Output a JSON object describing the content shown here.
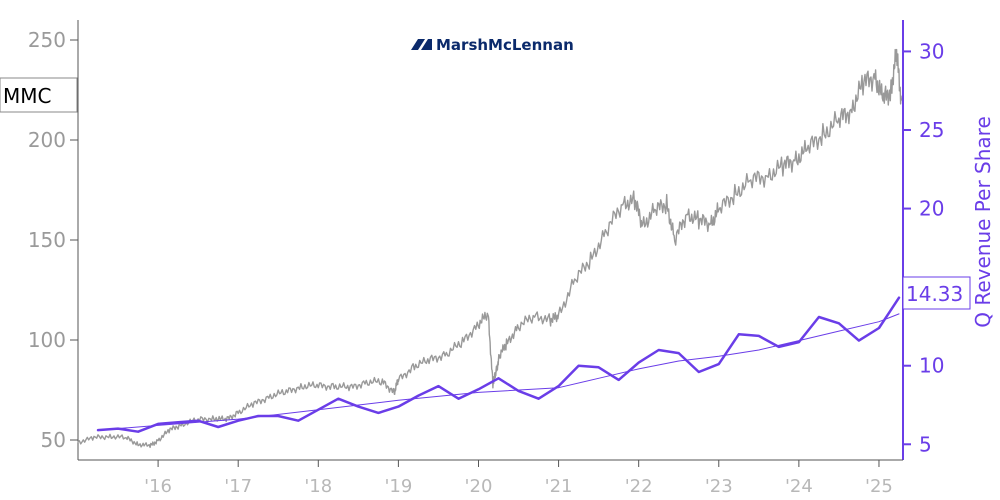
{
  "logo": {
    "text": "MarshMcLennan"
  },
  "chart_data": {
    "type": "line",
    "title": "",
    "ticker_label": "MMC",
    "x_ticks": [
      "'16",
      "'17",
      "'18",
      "'19",
      "'20",
      "'21",
      "'22",
      "'23",
      "'24",
      "'25"
    ],
    "x_range": [
      2015.0,
      2025.3
    ],
    "left_axis": {
      "label": "",
      "ticks": [
        50,
        100,
        150,
        200,
        250
      ],
      "range": [
        40,
        260
      ]
    },
    "right_axis": {
      "label": "Q Revenue Per Share",
      "ticks": [
        5,
        10,
        15,
        20,
        25,
        30
      ],
      "range": [
        4,
        32
      ]
    },
    "current_value_label": "14.33",
    "grid": false,
    "colors": {
      "price": "#999999",
      "revenue": "#6a3de8",
      "trend": "#6a3de8",
      "axis_left": "#555555",
      "axis_right": "#6a3de8"
    },
    "series": [
      {
        "name": "",
        "axis": "left",
        "style": "price",
        "x": [
          2015.0,
          2015.2,
          2015.4,
          2015.6,
          2015.75,
          2015.9,
          2016.0,
          2016.15,
          2016.3,
          2016.5,
          2016.7,
          2016.85,
          2017.0,
          2017.2,
          2017.4,
          2017.6,
          2017.8,
          2018.0,
          2018.2,
          2018.4,
          2018.6,
          2018.8,
          2018.95,
          2019.0,
          2019.2,
          2019.4,
          2019.6,
          2019.8,
          2020.0,
          2020.12,
          2020.18,
          2020.22,
          2020.26,
          2020.35,
          2020.5,
          2020.7,
          2020.9,
          2021.0,
          2021.2,
          2021.4,
          2021.6,
          2021.8,
          2021.95,
          2022.05,
          2022.2,
          2022.35,
          2022.45,
          2022.6,
          2022.75,
          2022.9,
          2023.0,
          2023.2,
          2023.4,
          2023.6,
          2023.8,
          2023.95,
          2024.1,
          2024.3,
          2024.5,
          2024.65,
          2024.8,
          2024.95,
          2025.05,
          2025.15,
          2025.22,
          2025.28
        ],
        "values": [
          49,
          51,
          52,
          51,
          48,
          47,
          50,
          55,
          58,
          60,
          61,
          60,
          64,
          68,
          72,
          74,
          77,
          77,
          77,
          76,
          79,
          79,
          74,
          80,
          87,
          90,
          93,
          99,
          108,
          113,
          78,
          84,
          92,
          98,
          107,
          112,
          110,
          112,
          130,
          140,
          155,
          168,
          170,
          157,
          165,
          168,
          150,
          163,
          160,
          158,
          165,
          173,
          180,
          182,
          187,
          190,
          195,
          203,
          210,
          215,
          228,
          232,
          220,
          225,
          243,
          220
        ]
      },
      {
        "name": "",
        "axis": "right",
        "style": "revenue",
        "x": [
          2015.25,
          2015.5,
          2015.75,
          2016.0,
          2016.25,
          2016.5,
          2016.75,
          2017.0,
          2017.25,
          2017.5,
          2017.75,
          2018.0,
          2018.25,
          2018.5,
          2018.75,
          2019.0,
          2019.25,
          2019.5,
          2019.75,
          2020.0,
          2020.25,
          2020.5,
          2020.75,
          2021.0,
          2021.25,
          2021.5,
          2021.75,
          2022.0,
          2022.25,
          2022.5,
          2022.75,
          2023.0,
          2023.25,
          2023.5,
          2023.75,
          2024.0,
          2024.25,
          2024.5,
          2024.75,
          2025.0,
          2025.25
        ],
        "values": [
          5.9,
          6.0,
          5.8,
          6.3,
          6.4,
          6.5,
          6.1,
          6.5,
          6.8,
          6.8,
          6.5,
          7.2,
          7.9,
          7.4,
          7.0,
          7.4,
          8.1,
          8.7,
          7.9,
          8.5,
          9.2,
          8.4,
          7.9,
          8.7,
          10.0,
          9.9,
          9.1,
          10.2,
          11.0,
          10.8,
          9.6,
          10.1,
          12.0,
          11.9,
          11.2,
          11.5,
          13.1,
          12.7,
          11.6,
          12.4,
          14.33
        ]
      },
      {
        "name": "",
        "axis": "right",
        "style": "trend",
        "x": [
          2015.25,
          2016.0,
          2017.0,
          2018.0,
          2019.0,
          2020.0,
          2021.0,
          2021.5,
          2022.0,
          2022.5,
          2023.0,
          2023.5,
          2024.0,
          2024.5,
          2025.0,
          2025.25
        ],
        "values": [
          5.9,
          6.2,
          6.6,
          7.2,
          7.8,
          8.3,
          8.6,
          9.2,
          9.8,
          10.3,
          10.6,
          11.0,
          11.6,
          12.2,
          12.8,
          13.3
        ]
      }
    ]
  }
}
